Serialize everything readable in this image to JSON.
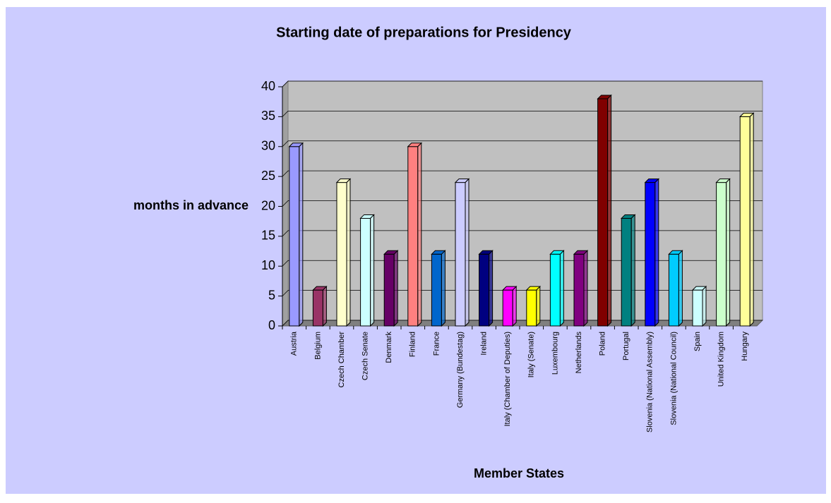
{
  "chart_data": {
    "type": "bar",
    "title": "Starting date of preparations for Presidency",
    "y_label": "months in advance",
    "x_label": "Member States",
    "categories": [
      "Austria",
      "Belgium",
      "Czech Chamber",
      "Czech Senate",
      "Denmark",
      "Finland",
      "France",
      "Germany (Bundestag)",
      "Ireland",
      "Italy (Chamber of Deputies)",
      "Italy (Senate)",
      "Luxembourg",
      "Netherlands",
      "Poland",
      "Portugal",
      "Slovenia (National Assembly)",
      "Slovenia (National Council)",
      "Spain",
      "United Kingdom",
      "Hungary"
    ],
    "values": [
      30,
      6,
      24,
      18,
      12,
      30,
      12,
      24,
      12,
      6,
      6,
      12,
      12,
      38,
      18,
      24,
      12,
      6,
      24,
      35
    ],
    "colors": [
      "#9999ff",
      "#993366",
      "#ffffcc",
      "#ccffff",
      "#660066",
      "#ff8080",
      "#0066cc",
      "#ccccff",
      "#000080",
      "#ff00ff",
      "#ffff00",
      "#00ffff",
      "#800080",
      "#800000",
      "#008080",
      "#0000ff",
      "#00ccff",
      "#ccffff",
      "#ccffcc",
      "#ffff99"
    ],
    "ylim": [
      0,
      40
    ],
    "yticks": [
      0,
      5,
      10,
      15,
      20,
      25,
      30,
      35,
      40
    ],
    "grid": true
  }
}
